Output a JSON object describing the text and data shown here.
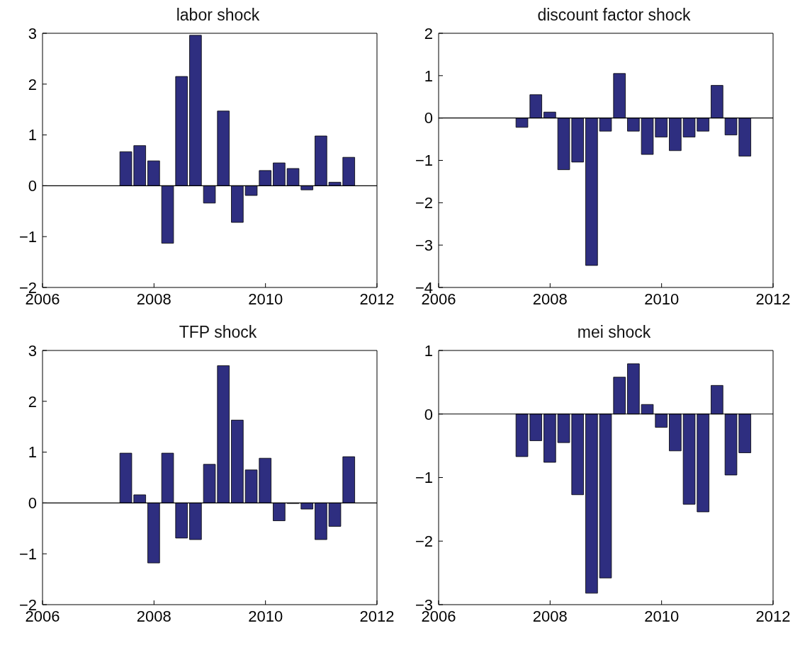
{
  "chart_data": [
    {
      "type": "bar",
      "title": "labor shock",
      "x": [
        2007.5,
        2007.75,
        2008,
        2008.25,
        2008.5,
        2008.75,
        2009,
        2009.25,
        2009.5,
        2009.75,
        2010,
        2010.25,
        2010.5,
        2010.75,
        2011,
        2011.25,
        2011.5
      ],
      "values": [
        0.67,
        0.79,
        0.49,
        -1.13,
        2.15,
        2.96,
        -0.34,
        1.47,
        -0.72,
        -0.19,
        0.3,
        0.45,
        0.34,
        -0.08,
        0.98,
        0.07,
        0.56
      ],
      "color": "#2e2e80",
      "xlim": [
        2006,
        2012
      ],
      "xticks": [
        2006,
        2008,
        2010,
        2012
      ],
      "ylim": [
        -2,
        3
      ],
      "yticks": [
        -2,
        -1,
        0,
        1,
        2,
        3
      ],
      "ref_lines": [
        {
          "axis": "y",
          "value": 0,
          "color": "#000000"
        }
      ]
    },
    {
      "type": "bar",
      "title": "discount factor shock",
      "x": [
        2007.5,
        2007.75,
        2008,
        2008.25,
        2008.5,
        2008.75,
        2009,
        2009.25,
        2009.5,
        2009.75,
        2010,
        2010.25,
        2010.5,
        2010.75,
        2011,
        2011.25,
        2011.5
      ],
      "values": [
        -0.22,
        0.55,
        0.14,
        -1.22,
        -1.04,
        -3.48,
        -0.31,
        1.05,
        -0.31,
        -0.86,
        -0.45,
        -0.77,
        -0.45,
        -0.31,
        0.77,
        -0.4,
        -0.9
      ],
      "color": "#2e2e80",
      "xlim": [
        2006,
        2012
      ],
      "xticks": [
        2006,
        2008,
        2010,
        2012
      ],
      "ylim": [
        -4,
        2
      ],
      "yticks": [
        -4,
        -3,
        -2,
        -1,
        0,
        1,
        2
      ],
      "ref_lines": [
        {
          "axis": "y",
          "value": 0,
          "color": "#000000"
        }
      ]
    },
    {
      "type": "bar",
      "title": "TFP shock",
      "x": [
        2007.5,
        2007.75,
        2008,
        2008.25,
        2008.5,
        2008.75,
        2009,
        2009.25,
        2009.5,
        2009.75,
        2010,
        2010.25,
        2010.5,
        2010.75,
        2011,
        2011.25,
        2011.5
      ],
      "values": [
        0.98,
        0.16,
        -1.18,
        0.98,
        -0.69,
        -0.72,
        0.76,
        2.7,
        1.63,
        0.65,
        0.88,
        -0.35,
        -0.01,
        -0.12,
        -0.72,
        -0.46,
        0.91
      ],
      "color": "#2e2e80",
      "xlim": [
        2006,
        2012
      ],
      "xticks": [
        2006,
        2008,
        2010,
        2012
      ],
      "ylim": [
        -2,
        3
      ],
      "yticks": [
        -2,
        -1,
        0,
        1,
        2,
        3
      ],
      "ref_lines": [
        {
          "axis": "y",
          "value": 0,
          "color": "#000000"
        }
      ]
    },
    {
      "type": "bar",
      "title": "mei shock",
      "x": [
        2007.5,
        2007.75,
        2008,
        2008.25,
        2008.5,
        2008.75,
        2009,
        2009.25,
        2009.5,
        2009.75,
        2010,
        2010.25,
        2010.5,
        2010.75,
        2011,
        2011.25,
        2011.5
      ],
      "values": [
        -0.67,
        -0.42,
        -0.76,
        -0.45,
        -1.27,
        -2.82,
        -2.58,
        0.58,
        0.79,
        0.15,
        -0.21,
        -0.58,
        -1.42,
        -1.54,
        0.45,
        -0.96,
        -0.61
      ],
      "color": "#2e2e80",
      "xlim": [
        2006,
        2012
      ],
      "xticks": [
        2006,
        2008,
        2010,
        2012
      ],
      "ylim": [
        -3,
        1
      ],
      "yticks": [
        -3,
        -2,
        -1,
        0,
        1
      ],
      "ref_lines": [
        {
          "axis": "y",
          "value": 0,
          "color": "#000000"
        }
      ]
    }
  ]
}
